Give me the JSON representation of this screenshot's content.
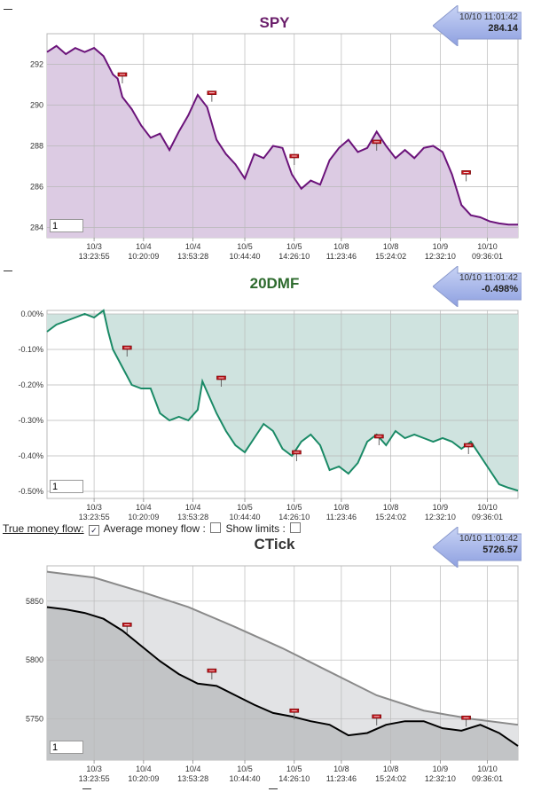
{
  "panels": [
    {
      "id": "spy",
      "title": "SPY",
      "title_color": "#6b1f6b",
      "readout": {
        "time": "10/10 11:01:42",
        "value": "284.14"
      },
      "zoom_value": "1",
      "line_color": "#6b137a",
      "fill_color": "#dccbe3",
      "yticks": [
        "292",
        "290",
        "288",
        "286",
        "284"
      ],
      "xticks": [
        {
          "date": "10/3",
          "time": "13:23:55"
        },
        {
          "date": "10/4",
          "time": "10:20:09"
        },
        {
          "date": "10/4",
          "time": "13:53:28"
        },
        {
          "date": "10/5",
          "time": "10:44:40"
        },
        {
          "date": "10/5",
          "time": "14:26:10"
        },
        {
          "date": "10/8",
          "time": "11:23:46"
        },
        {
          "date": "10/8",
          "time": "15:24:02"
        },
        {
          "date": "10/9",
          "time": "12:32:10"
        },
        {
          "date": "10/10",
          "time": "09:36:01"
        }
      ]
    },
    {
      "id": "dmf",
      "title": "20DMF",
      "title_color": "#2e6b2e",
      "readout": {
        "time": "10/10 11:01:42",
        "value": "-0.498%"
      },
      "zoom_value": "1",
      "line_color": "#1a8a66",
      "fill_color": "#cfe3df",
      "yticks": [
        "0.00%",
        "-0.10%",
        "-0.20%",
        "-0.30%",
        "-0.40%",
        "-0.50%"
      ],
      "xticks": [
        {
          "date": "10/3",
          "time": "13:23:55"
        },
        {
          "date": "10/4",
          "time": "10:20:09"
        },
        {
          "date": "10/4",
          "time": "13:53:28"
        },
        {
          "date": "10/5",
          "time": "10:44:40"
        },
        {
          "date": "10/5",
          "time": "14:26:10"
        },
        {
          "date": "10/8",
          "time": "11:23:46"
        },
        {
          "date": "10/8",
          "time": "15:24:02"
        },
        {
          "date": "10/9",
          "time": "12:32:10"
        },
        {
          "date": "10/10",
          "time": "09:36:01"
        }
      ]
    },
    {
      "id": "ctick",
      "title": "CTick",
      "title_color": "#333333",
      "readout": {
        "time": "10/10 11:01:42",
        "value": "5726.57"
      },
      "zoom_value": "1",
      "line_color": "#000000",
      "avg_color": "#8a8a8a",
      "fill_color": "#c2c4c6",
      "avg_fill_color": "#e2e3e5",
      "yticks": [
        "5850",
        "5800",
        "5750"
      ],
      "xticks": [
        {
          "date": "10/3",
          "time": "13:23:55"
        },
        {
          "date": "10/4",
          "time": "10:20:09"
        },
        {
          "date": "10/4",
          "time": "13:53:28"
        },
        {
          "date": "10/5",
          "time": "10:44:40"
        },
        {
          "date": "10/5",
          "time": "14:26:10"
        },
        {
          "date": "10/8",
          "time": "11:23:46"
        },
        {
          "date": "10/8",
          "time": "15:24:02"
        },
        {
          "date": "10/9",
          "time": "12:32:10"
        },
        {
          "date": "10/10",
          "time": "09:36:01"
        }
      ]
    }
  ],
  "options": {
    "true_money_flow": "True money flow:",
    "true_money_flow_checked": true,
    "average_money_flow": "Average money flow :",
    "average_money_flow_checked": false,
    "show_limits": "Show limits :",
    "show_limits_checked": false
  },
  "chart_data": [
    {
      "type": "area",
      "title": "SPY",
      "ylim": [
        283.5,
        293.5
      ],
      "grid": true,
      "x": [
        0,
        2,
        4,
        6,
        8,
        10,
        12,
        14,
        15,
        16,
        18,
        20,
        22,
        24,
        26,
        28,
        30,
        32,
        34,
        36,
        38,
        40,
        42,
        44,
        46,
        48,
        50,
        52,
        54,
        56,
        58,
        60,
        62,
        64,
        66,
        68,
        70,
        72,
        74,
        76,
        78,
        80,
        82,
        84,
        86,
        88,
        90,
        92,
        94,
        96,
        98,
        100
      ],
      "values": [
        292.6,
        292.9,
        292.5,
        292.8,
        292.6,
        292.8,
        292.4,
        291.5,
        291.3,
        290.4,
        289.8,
        289.0,
        288.4,
        288.6,
        287.8,
        288.7,
        289.5,
        290.5,
        289.9,
        288.3,
        287.6,
        287.1,
        286.4,
        287.6,
        287.4,
        288.0,
        287.9,
        286.6,
        285.9,
        286.3,
        286.1,
        287.3,
        287.9,
        288.3,
        287.7,
        287.9,
        288.7,
        288.0,
        287.4,
        287.8,
        287.4,
        287.9,
        288.0,
        287.7,
        286.6,
        285.1,
        284.6,
        284.5,
        284.3,
        284.2,
        284.14,
        284.14
      ],
      "markers": [
        {
          "x": 16,
          "y": 291.5
        },
        {
          "x": 35,
          "y": 290.6
        },
        {
          "x": 52.5,
          "y": 287.5
        },
        {
          "x": 70,
          "y": 288.2
        },
        {
          "x": 89,
          "y": 286.7
        }
      ]
    },
    {
      "type": "area",
      "title": "20DMF",
      "ylim": [
        -0.52,
        0.01
      ],
      "grid": true,
      "x": [
        0,
        2,
        4,
        6,
        8,
        10,
        12,
        13,
        14,
        16,
        18,
        20,
        22,
        24,
        26,
        28,
        30,
        32,
        33,
        34,
        36,
        38,
        40,
        42,
        44,
        46,
        48,
        50,
        52,
        54,
        56,
        58,
        60,
        62,
        64,
        66,
        68,
        70,
        72,
        74,
        76,
        78,
        80,
        82,
        84,
        86,
        88,
        90,
        92,
        94,
        96,
        98,
        100
      ],
      "values": [
        -0.05,
        -0.03,
        -0.02,
        -0.01,
        0.0,
        -0.01,
        0.01,
        -0.05,
        -0.1,
        -0.15,
        -0.2,
        -0.21,
        -0.21,
        -0.28,
        -0.3,
        -0.29,
        -0.3,
        -0.27,
        -0.19,
        -0.22,
        -0.28,
        -0.33,
        -0.37,
        -0.39,
        -0.35,
        -0.31,
        -0.33,
        -0.38,
        -0.4,
        -0.36,
        -0.34,
        -0.37,
        -0.44,
        -0.43,
        -0.45,
        -0.42,
        -0.36,
        -0.34,
        -0.37,
        -0.33,
        -0.35,
        -0.34,
        -0.35,
        -0.36,
        -0.35,
        -0.36,
        -0.38,
        -0.36,
        -0.4,
        -0.44,
        -0.48,
        -0.49,
        -0.498
      ],
      "markers": [
        {
          "x": 17,
          "y": -0.095
        },
        {
          "x": 37,
          "y": -0.18
        },
        {
          "x": 53,
          "y": -0.39
        },
        {
          "x": 70.5,
          "y": -0.345
        },
        {
          "x": 89.5,
          "y": -0.37
        }
      ]
    },
    {
      "type": "line",
      "title": "CTick",
      "ylim": [
        5715,
        5880
      ],
      "grid": true,
      "series": [
        {
          "x": [
            0,
            4,
            8,
            12,
            16,
            20,
            24,
            28,
            32,
            36,
            40,
            44,
            48,
            52,
            56,
            60,
            64,
            68,
            72,
            76,
            80,
            84,
            88,
            92,
            96,
            100
          ],
          "values": [
            5845,
            5843,
            5840,
            5835,
            5825,
            5812,
            5799,
            5788,
            5780,
            5778,
            5770,
            5762,
            5755,
            5752,
            5748,
            5745,
            5736,
            5738,
            5745,
            5748,
            5748,
            5742,
            5740,
            5745,
            5738,
            5727
          ]
        },
        {
          "x": [
            0,
            10,
            20,
            30,
            40,
            50,
            60,
            70,
            80,
            90,
            100
          ],
          "values": [
            5875,
            5870,
            5858,
            5845,
            5828,
            5810,
            5790,
            5770,
            5757,
            5750,
            5745
          ]
        }
      ],
      "markers": [
        {
          "x": 17,
          "y": 5830
        },
        {
          "x": 35,
          "y": 5791
        },
        {
          "x": 52.5,
          "y": 5757
        },
        {
          "x": 70,
          "y": 5752
        },
        {
          "x": 89,
          "y": 5751
        }
      ]
    }
  ]
}
